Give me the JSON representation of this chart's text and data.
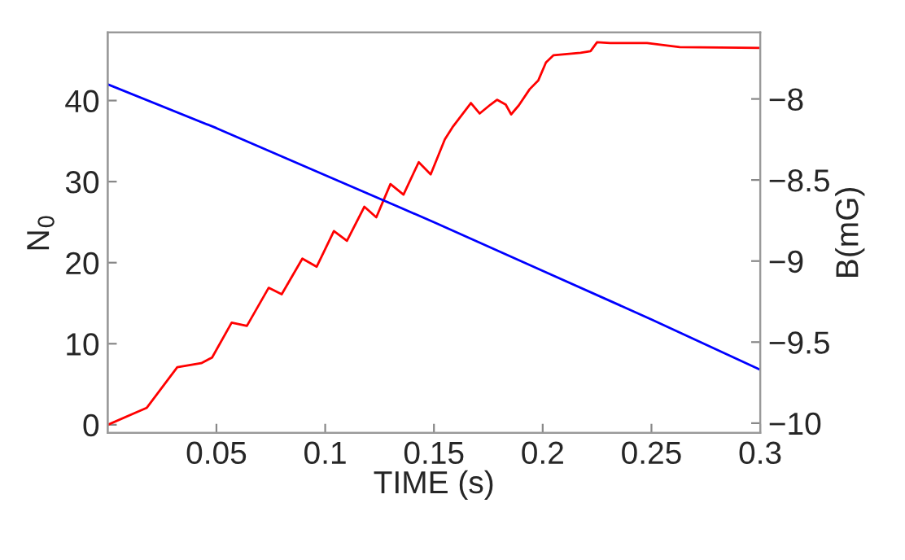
{
  "chart_data": {
    "type": "line",
    "xlabel": "TIME (s)",
    "ylabel": "N$_{0}$",
    "y2label": "B(mG)",
    "xlim": [
      0,
      0.3
    ],
    "xticks": [
      0.05,
      0.1,
      0.15,
      0.2,
      0.25,
      0.3
    ],
    "ylim": [
      -1,
      48.4
    ],
    "yticks": [
      0,
      10,
      20,
      30,
      40
    ],
    "y2lim": [
      -10.06,
      -7.59
    ],
    "y2ticks": [
      {
        "value": -10,
        "label": "−10"
      },
      {
        "value": -9.5,
        "label": "−9.5"
      },
      {
        "value": -9,
        "label": "−9"
      },
      {
        "value": -8.5,
        "label": "−8.5"
      },
      {
        "value": -8,
        "label": "−8"
      }
    ],
    "grid": false,
    "line_style": "solid",
    "marker": "none",
    "series": [
      {
        "color": "#ff0000",
        "x": [
          0,
          0.018,
          0.032,
          0.043,
          0.048,
          0.057,
          0.064,
          0.074,
          0.08,
          0.0895,
          0.0961,
          0.104,
          0.11,
          0.118,
          0.1235,
          0.13,
          0.136,
          0.143,
          0.1485,
          0.155,
          0.1585,
          0.167,
          0.171,
          0.176,
          0.179,
          0.183,
          0.1855,
          0.189,
          0.194,
          0.198,
          0.2015,
          0.205,
          0.2174,
          0.222,
          0.225,
          0.231,
          0.248,
          0.263,
          0.3
        ],
        "values": [
          0,
          2.1,
          7.1,
          7.6,
          8.3,
          12.6,
          12.2,
          16.9,
          16.1,
          20.5,
          19.5,
          23.9,
          22.7,
          26.9,
          25.6,
          29.7,
          28.4,
          32.4,
          30.9,
          35.2,
          36.7,
          39.7,
          38.4,
          39.5,
          40.1,
          39.5,
          38.3,
          39.4,
          41.4,
          42.5,
          44.7,
          45.6,
          45.9,
          46.1,
          47.2,
          47.1,
          47.1,
          46.6,
          46.5
        ]
      },
      {
        "color": "#0000ff",
        "axis": "y2",
        "x": [
          0,
          0.05,
          0.1,
          0.15,
          0.2,
          0.25,
          0.3
        ],
        "values": [
          -7.91,
          -8.18,
          -8.47,
          -8.76,
          -9.06,
          -9.36,
          -9.67
        ]
      }
    ]
  }
}
